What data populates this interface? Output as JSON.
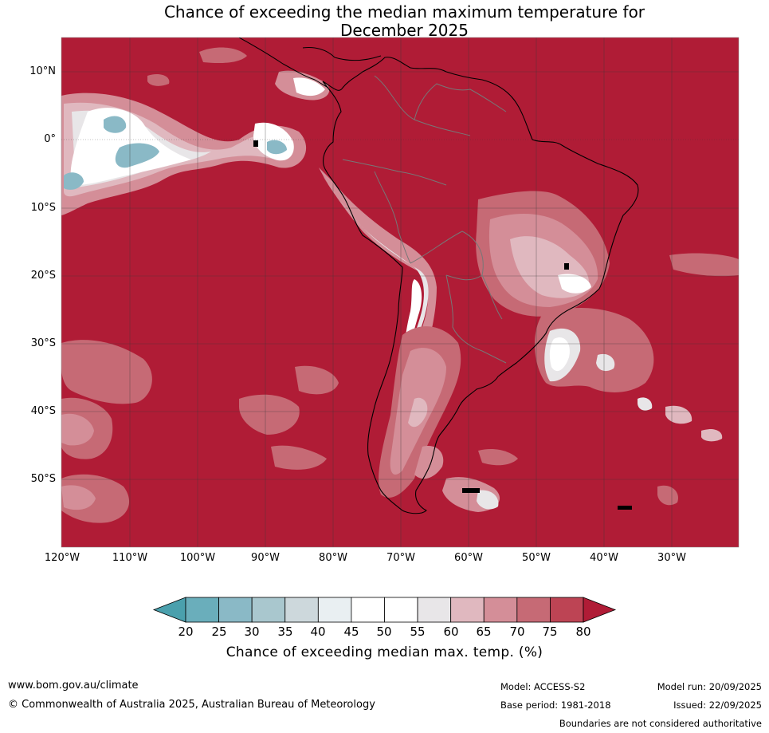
{
  "title": {
    "line1": "Chance of exceeding the median maximum temperature for",
    "line2": "December 2025"
  },
  "map": {
    "region": "South America",
    "lat_labels": [
      "10°N",
      "0°",
      "10°S",
      "20°S",
      "30°S",
      "40°S",
      "50°S"
    ],
    "lon_labels": [
      "120°W",
      "110°W",
      "100°W",
      "90°W",
      "80°W",
      "70°W",
      "60°W",
      "50°W",
      "40°W",
      "30°W"
    ],
    "background_color": "#b01c36"
  },
  "colorbar": {
    "ticks": [
      "20",
      "25",
      "30",
      "35",
      "40",
      "45",
      "50",
      "55",
      "60",
      "65",
      "70",
      "75",
      "80"
    ],
    "colors": [
      "#4aa0ad",
      "#6aaebb",
      "#8ab9c6",
      "#a9c7ce",
      "#cdd8dc",
      "#e9eff2",
      "#ffffff",
      "#ffffff",
      "#e8e6e8",
      "#e0b8bf",
      "#d48e98",
      "#c66a75",
      "#bd4454",
      "#b01c36"
    ],
    "label": "Chance of exceeding median max. temp. (%)"
  },
  "footer": {
    "website": "www.bom.gov.au/climate",
    "copyright": "© Commonwealth of Australia 2025, Australian Bureau of Meteorology",
    "model": "Model: ACCESS-S2",
    "base_period": "Base period: 1981-2018",
    "model_run": "Model run: 20/09/2025",
    "issued": "Issued: 22/09/2025",
    "disclaimer": "Boundaries are not considered authoritative"
  }
}
